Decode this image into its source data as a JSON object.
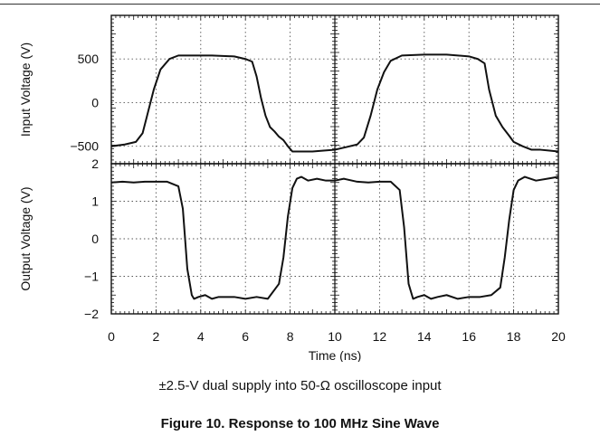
{
  "caption": "±2.5-V dual supply into 50-Ω oscilloscope input",
  "figure_title": "Figure 10. Response to 100 MHz Sine Wave",
  "chart_data": [
    {
      "type": "line",
      "ylabel": "Input Voltage (V)",
      "ylim": [
        -700,
        1000
      ],
      "yticks": [
        -500,
        0,
        500
      ],
      "xlim": [
        0,
        20
      ],
      "grid": true,
      "series": [
        {
          "x": [
            0,
            0.6,
            1.1,
            1.4,
            1.6,
            1.9,
            2.2,
            2.6,
            3.0,
            3.5,
            4.5,
            5.5,
            6.0,
            6.3,
            6.5,
            6.7,
            6.9,
            7.1,
            7.3,
            7.5,
            7.7,
            7.9,
            8.1,
            8.5,
            9.0,
            9.5,
            10.0,
            10.5,
            11.0,
            11.3,
            11.6,
            11.9,
            12.2,
            12.5,
            13.0,
            14.0,
            15.0,
            16.0,
            16.4,
            16.7,
            16.9,
            17.2,
            17.5,
            17.8,
            18.0,
            18.4,
            18.8,
            19.2,
            19.6,
            20.0
          ],
          "y": [
            -500,
            -480,
            -450,
            -350,
            -150,
            150,
            380,
            500,
            540,
            540,
            540,
            530,
            500,
            470,
            300,
            50,
            -150,
            -280,
            -330,
            -390,
            -430,
            -500,
            -560,
            -560,
            -560,
            -550,
            -540,
            -510,
            -480,
            -400,
            -150,
            150,
            350,
            480,
            540,
            550,
            550,
            530,
            500,
            450,
            150,
            -150,
            -280,
            -380,
            -450,
            -500,
            -540,
            -540,
            -550,
            -560
          ]
        }
      ]
    },
    {
      "type": "line",
      "xlabel": "Time (ns)",
      "ylabel": "Output Voltage (V)",
      "ylim": [
        -2,
        2
      ],
      "yticks": [
        -2,
        -1,
        0,
        1,
        2
      ],
      "xlim": [
        0,
        20
      ],
      "xticks": [
        0,
        2,
        4,
        6,
        8,
        10,
        12,
        14,
        16,
        18,
        20
      ],
      "grid": true,
      "series": [
        {
          "x": [
            0,
            0.5,
            1.0,
            1.5,
            2.0,
            2.5,
            3.0,
            3.2,
            3.4,
            3.6,
            3.7,
            3.9,
            4.2,
            4.5,
            4.8,
            5.0,
            5.5,
            6.0,
            6.5,
            7.0,
            7.5,
            7.7,
            7.9,
            8.1,
            8.3,
            8.5,
            8.8,
            9.2,
            9.6,
            10.0,
            10.4,
            11.0,
            11.5,
            12.0,
            12.5,
            12.9,
            13.1,
            13.3,
            13.5,
            13.7,
            14.0,
            14.3,
            14.6,
            15.0,
            15.5,
            16.0,
            16.5,
            17.0,
            17.4,
            17.6,
            17.8,
            18.0,
            18.2,
            18.5,
            19.0,
            19.5,
            20.0
          ],
          "y": [
            1.5,
            1.52,
            1.5,
            1.52,
            1.52,
            1.52,
            1.4,
            0.8,
            -0.8,
            -1.5,
            -1.6,
            -1.55,
            -1.5,
            -1.6,
            -1.55,
            -1.55,
            -1.55,
            -1.6,
            -1.55,
            -1.6,
            -1.2,
            -0.5,
            0.6,
            1.35,
            1.6,
            1.65,
            1.55,
            1.6,
            1.55,
            1.55,
            1.6,
            1.52,
            1.5,
            1.52,
            1.52,
            1.3,
            0.3,
            -1.2,
            -1.6,
            -1.55,
            -1.5,
            -1.6,
            -1.55,
            -1.5,
            -1.6,
            -1.55,
            -1.55,
            -1.5,
            -1.3,
            -0.5,
            0.5,
            1.3,
            1.55,
            1.65,
            1.55,
            1.6,
            1.65
          ]
        }
      ]
    }
  ]
}
